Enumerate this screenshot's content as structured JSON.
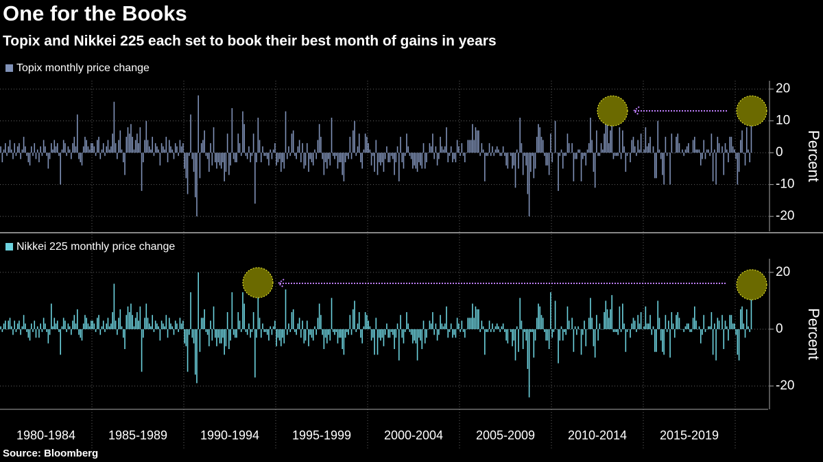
{
  "chart_data": {
    "type": "bar",
    "title": "One for the Books",
    "subtitle": "Topix and Nikkei 225 each set to book their best month of gains in years",
    "source": "Source: Bloomberg",
    "categories": [
      "1980-1984",
      "1985-1989",
      "1990-1994",
      "1995-1999",
      "2000-2004",
      "2005-2009",
      "2010-2014",
      "2015-2019",
      null
    ],
    "panels": [
      {
        "name": "Topix monthly price change",
        "color": "#8092b8",
        "ylabel": "Percent",
        "ylim": [
          -24.7,
          22.6
        ],
        "yticks": [
          -20,
          -10,
          0,
          10,
          20
        ],
        "values": [
          [
            2,
            -3,
            1,
            3,
            -1,
            2,
            4,
            1,
            -2,
            3,
            -1,
            2,
            3,
            -2,
            1,
            5,
            2,
            -1,
            -3,
            -4,
            2,
            -1,
            3,
            -2,
            1,
            -3,
            2,
            -1,
            4,
            2,
            -1,
            -5,
            -2,
            3,
            1,
            4,
            2,
            3,
            -1,
            -10,
            1,
            4,
            3,
            -1,
            2,
            1,
            -2,
            3,
            5,
            2,
            12,
            -2,
            -3,
            -4,
            2,
            5,
            4,
            2,
            1,
            3
          ],
          [
            3,
            2,
            -1,
            4,
            5,
            -2,
            1,
            3,
            -1,
            2,
            4,
            1,
            2,
            6,
            16,
            3,
            -2,
            4,
            7,
            1,
            -3,
            -7,
            5,
            8,
            6,
            9,
            5,
            1,
            4,
            6,
            3,
            8,
            -12,
            -3,
            4,
            10,
            4,
            2,
            1,
            5,
            -1,
            3,
            2,
            1,
            -4,
            3,
            2,
            1,
            5,
            -3,
            4,
            2,
            1,
            -2,
            3,
            2,
            -1,
            4,
            2,
            3
          ],
          [
            -5,
            -8,
            -13,
            -1,
            12,
            -2,
            -6,
            -14,
            -20,
            18,
            -8,
            3,
            4,
            7,
            -1,
            -2,
            -6,
            3,
            -4,
            8,
            -3,
            -5,
            -3,
            -4,
            -5,
            -3,
            -9,
            -6,
            6,
            -7,
            -4,
            14,
            -2,
            -3,
            -3,
            6,
            3,
            -1,
            13,
            9,
            -1,
            -2,
            2,
            -3,
            -1,
            6,
            -16,
            -3,
            11,
            4,
            -3,
            2,
            -1,
            -1,
            -2,
            -4,
            1,
            -2,
            1,
            3
          ],
          [
            -4,
            -3,
            -2,
            -6,
            -3,
            -5,
            13,
            -2,
            2,
            -1,
            6,
            7,
            -1,
            -2,
            2,
            4,
            -3,
            3,
            -5,
            -4,
            3,
            -6,
            -2,
            -3,
            -4,
            1,
            -2,
            4,
            9,
            5,
            -2,
            -7,
            -3,
            -5,
            -2,
            -4,
            11,
            -1,
            -2,
            -1,
            -5,
            -3,
            -3,
            -7,
            -9,
            -3,
            -1,
            -2,
            5,
            -2,
            7,
            10,
            -1,
            2,
            6,
            -3,
            -5,
            1,
            6,
            5
          ],
          [
            3,
            1,
            -4,
            -1,
            -6,
            4,
            -7,
            -3,
            -4,
            -3,
            -6,
            -2,
            2,
            -3,
            -3,
            -1,
            -2,
            -7,
            -3,
            2,
            -9,
            5,
            -3,
            -5,
            -1,
            6,
            2,
            -1,
            -2,
            -5,
            -4,
            -5,
            -6,
            -3,
            -4,
            -5,
            3,
            -5,
            -3,
            0,
            3,
            2,
            6,
            -2,
            2,
            -4,
            -2,
            5,
            2,
            1,
            2,
            8,
            -3,
            -1,
            2,
            -3,
            -2,
            -3,
            4,
            2
          ],
          [
            -1,
            3,
            -1,
            -3,
            0,
            4,
            4,
            4,
            9,
            4,
            8,
            7,
            7,
            -1,
            3,
            1,
            -9,
            -1,
            -1,
            3,
            -1,
            2,
            -1,
            1,
            2,
            1,
            -1,
            -1,
            2,
            -1,
            -4,
            -5,
            0,
            -1,
            -5,
            -4,
            -11,
            1,
            -5,
            11,
            3,
            -7,
            -1,
            -4,
            -13,
            -20,
            -6,
            -1,
            -8,
            -5,
            5,
            9,
            8,
            5,
            4,
            -1,
            -4,
            -4,
            -7,
            6
          ],
          [
            -3,
            0,
            10,
            0,
            -12,
            -1,
            1,
            -5,
            -1,
            -1,
            6,
            3,
            0,
            3,
            -9,
            -2,
            -2,
            1,
            1,
            -9,
            -2,
            -1,
            -4,
            1,
            3,
            11,
            4,
            -6,
            -11,
            7,
            -1,
            -1,
            3,
            1,
            6,
            10,
            9,
            3,
            7,
            13,
            -2,
            -1,
            -1,
            -1,
            8,
            -2,
            7,
            2,
            -6,
            -1,
            0,
            -3,
            4,
            5,
            2,
            -1,
            4,
            1,
            6,
            0
          ],
          [
            1,
            8,
            2,
            3,
            5,
            0,
            2,
            -8,
            -8,
            10,
            1,
            -2,
            -7,
            -10,
            5,
            -1,
            0,
            -10,
            6,
            0,
            0,
            5,
            6,
            3,
            0,
            1,
            -1,
            1,
            2,
            3,
            0,
            0,
            4,
            5,
            1,
            1,
            1,
            -4,
            -2,
            4,
            -2,
            1,
            1,
            -1,
            6,
            -9,
            1,
            -10,
            5,
            3,
            0,
            2,
            -7,
            3,
            1,
            -3,
            5,
            5,
            2,
            1
          ],
          [
            -2,
            -10,
            -6,
            4,
            7,
            -0.3,
            -4,
            8,
            1,
            -3,
            11
          ]
        ]
      },
      {
        "name": "Nikkei 225 monthly price change",
        "color": "#6dd3df",
        "ylabel": "Percent",
        "ylim": [
          -28.2,
          24.8
        ],
        "yticks": [
          -20,
          0,
          20
        ],
        "values": [
          [
            1,
            -1,
            2,
            3,
            0,
            3,
            4,
            1,
            -2,
            3,
            -1,
            2,
            3,
            -2,
            1,
            5,
            2,
            -1,
            -3,
            -4,
            2,
            -1,
            3,
            -3,
            1,
            -3,
            2,
            -1,
            4,
            2,
            -1,
            -5,
            -2,
            9,
            1,
            4,
            2,
            3,
            -1,
            -9,
            1,
            4,
            3,
            -1,
            2,
            1,
            -2,
            3,
            5,
            2,
            7,
            -2,
            -3,
            -4,
            2,
            5,
            4,
            2,
            1,
            3
          ],
          [
            3,
            2,
            -1,
            4,
            5,
            -2,
            1,
            3,
            -1,
            2,
            4,
            1,
            2,
            6,
            16,
            3,
            -2,
            4,
            7,
            1,
            -3,
            -7,
            5,
            8,
            6,
            9,
            5,
            1,
            4,
            6,
            3,
            8,
            -15,
            -3,
            4,
            9,
            4,
            2,
            1,
            5,
            -1,
            3,
            2,
            1,
            -4,
            3,
            2,
            1,
            5,
            -3,
            4,
            2,
            1,
            -2,
            3,
            2,
            -1,
            4,
            2,
            3
          ],
          [
            -5,
            -6,
            -15,
            -2,
            13,
            -3,
            -5,
            -16,
            -19,
            20,
            -8,
            4,
            4,
            7,
            -1,
            -2,
            -6,
            3,
            -4,
            8,
            -3,
            -6,
            -3,
            -5,
            -5,
            -3,
            -9,
            -6,
            6,
            -7,
            -4,
            13,
            -2,
            -3,
            -3,
            6,
            3,
            -1,
            13,
            9,
            -1,
            -2,
            2,
            -3,
            -1,
            6,
            -17,
            -3,
            15,
            4,
            -3,
            2,
            -1,
            -1,
            -2,
            -4,
            1,
            -2,
            1,
            3
          ],
          [
            -6,
            -3,
            -4,
            -6,
            -3,
            -5,
            14,
            -2,
            2,
            -1,
            6,
            7,
            -1,
            -2,
            2,
            4,
            -3,
            3,
            -5,
            -4,
            3,
            -6,
            -2,
            -3,
            -4,
            1,
            -2,
            4,
            9,
            5,
            -2,
            -7,
            -3,
            -5,
            -2,
            -4,
            11,
            -1,
            -2,
            -1,
            -5,
            -3,
            -3,
            -7,
            -9,
            -3,
            -1,
            -2,
            5,
            -2,
            7,
            10,
            -1,
            2,
            6,
            -3,
            -5,
            1,
            6,
            5
          ],
          [
            3,
            1,
            -4,
            -3,
            -9,
            4,
            -9,
            -3,
            -4,
            -3,
            -6,
            -2,
            2,
            -3,
            -3,
            -1,
            -2,
            -7,
            -3,
            2,
            -11,
            5,
            -3,
            -5,
            -1,
            6,
            2,
            -1,
            -2,
            -5,
            -4,
            -5,
            -11,
            -3,
            -4,
            -7,
            3,
            -5,
            -3,
            0,
            3,
            2,
            6,
            -2,
            2,
            -4,
            -2,
            5,
            2,
            1,
            2,
            8,
            -3,
            -1,
            2,
            -3,
            -2,
            -3,
            4,
            2
          ],
          [
            -1,
            3,
            -1,
            -3,
            0,
            4,
            4,
            4,
            9,
            4,
            8,
            7,
            7,
            -1,
            3,
            1,
            -9,
            -1,
            -1,
            3,
            -1,
            2,
            -1,
            1,
            2,
            1,
            -1,
            1,
            2,
            -1,
            -4,
            -5,
            0,
            -1,
            -6,
            -4,
            -11,
            1,
            -8,
            11,
            3,
            -7,
            -1,
            -4,
            -14,
            -24,
            -1,
            -1,
            -10,
            -4,
            4,
            9,
            8,
            5,
            4,
            -1,
            -4,
            -4,
            -7,
            13
          ],
          [
            -3,
            -1,
            10,
            0,
            -12,
            -4,
            1,
            -4,
            -1,
            -2,
            8,
            3,
            0,
            4,
            -8,
            1,
            -2,
            1,
            0,
            -9,
            -2,
            3,
            -6,
            0,
            4,
            11,
            4,
            -6,
            -10,
            5,
            -4,
            2,
            0,
            0,
            6,
            10,
            7,
            4,
            7,
            12,
            -1,
            -1,
            -1,
            -2,
            8,
            -1,
            9,
            2,
            -8,
            -1,
            0,
            -3,
            2,
            4,
            3,
            -1,
            5,
            2,
            6,
            0
          ],
          [
            1,
            8,
            2,
            2,
            5,
            -2,
            1,
            -8,
            -8,
            10,
            4,
            -4,
            -8,
            -9,
            5,
            -1,
            3,
            -10,
            6,
            2,
            -3,
            5,
            6,
            4,
            0,
            0,
            -1,
            1,
            2,
            2,
            -1,
            -1,
            4,
            8,
            3,
            0,
            1,
            -5,
            -2,
            5,
            -1,
            0,
            1,
            1,
            6,
            -9,
            2,
            -11,
            4,
            3,
            0,
            5,
            -7,
            3,
            1,
            -4,
            5,
            5,
            2,
            2
          ],
          [
            -2,
            -9,
            -11,
            7,
            8,
            2,
            -3,
            7,
            1,
            -1,
            15
          ]
        ]
      }
    ]
  }
}
